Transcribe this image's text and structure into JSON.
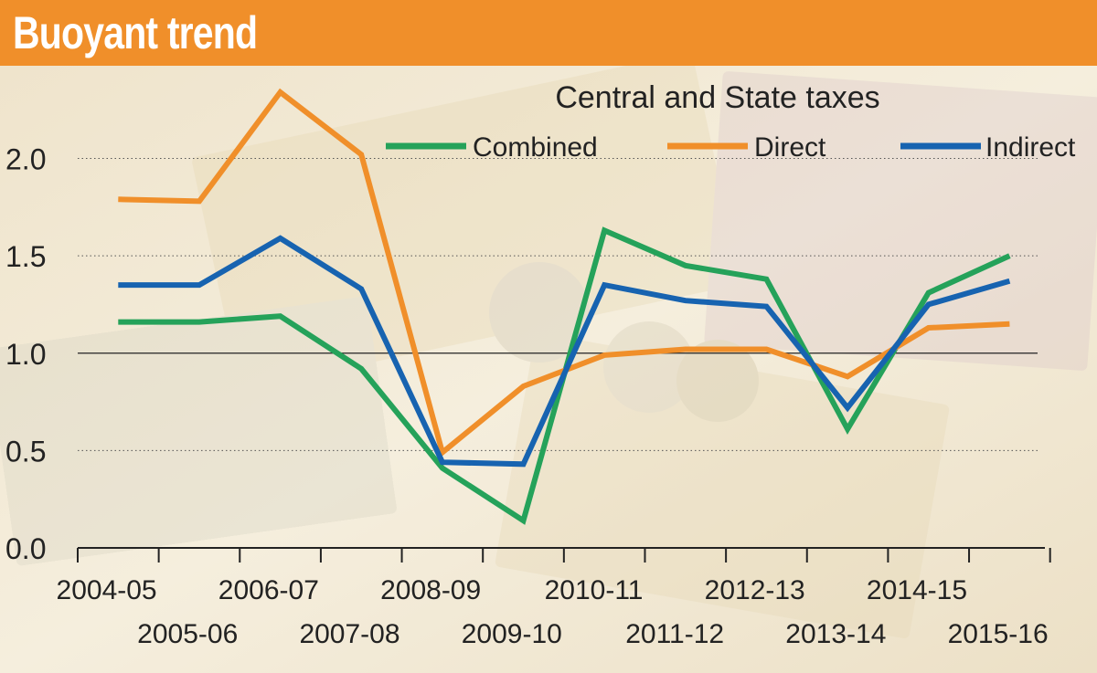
{
  "header": {
    "title": "Buoyant trend"
  },
  "colors": {
    "header_bg": "#f08f2a",
    "combined": "#25a25a",
    "direct": "#f08f2a",
    "indirect": "#1763b0"
  },
  "chart_data": {
    "type": "line",
    "title": "Central and State taxes",
    "xlabel": "",
    "ylabel": "",
    "categories": [
      "2004-05",
      "2005-06",
      "2006-07",
      "2007-08",
      "2008-09",
      "2009-10",
      "2010-11",
      "2011-12",
      "2012-13",
      "2013-14",
      "2014-15",
      "2015-16"
    ],
    "series": [
      {
        "name": "Combined",
        "color": "#25a25a",
        "values": [
          1.16,
          1.16,
          1.19,
          0.92,
          0.41,
          0.14,
          1.63,
          1.45,
          1.38,
          0.61,
          1.31,
          1.5
        ]
      },
      {
        "name": "Direct",
        "color": "#f08f2a",
        "values": [
          1.79,
          1.78,
          2.34,
          2.02,
          0.49,
          0.83,
          0.99,
          1.02,
          1.02,
          0.88,
          1.13,
          1.15
        ]
      },
      {
        "name": "Indirect",
        "color": "#1763b0",
        "values": [
          1.35,
          1.35,
          1.59,
          1.33,
          0.44,
          0.43,
          1.35,
          1.27,
          1.24,
          0.72,
          1.25,
          1.37
        ]
      }
    ],
    "y_ticks": [
      "0.0",
      "0.5",
      "1.0",
      "1.5",
      "2.0"
    ],
    "ylim": [
      0,
      2.5
    ],
    "grid": true,
    "legend": "top"
  }
}
